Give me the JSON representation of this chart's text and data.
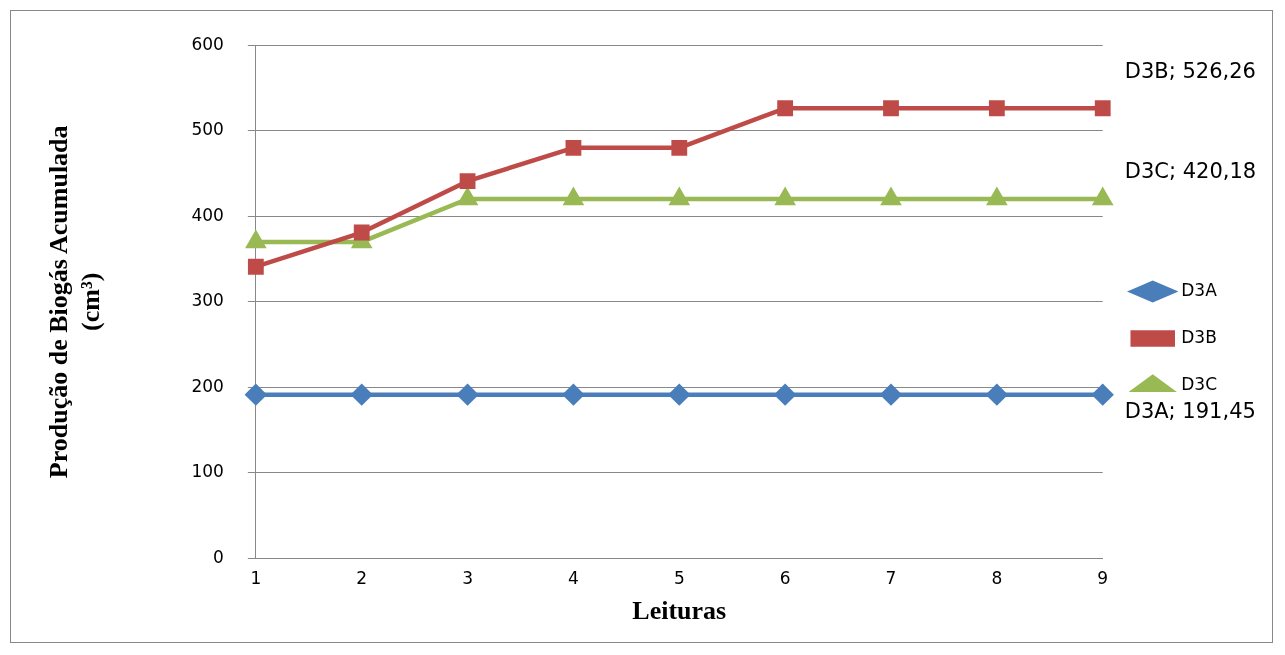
{
  "chart_data": {
    "type": "line",
    "xlabel": "Leituras",
    "ylabel": "Produção de Biogás Acumulada (cm³)",
    "categories": [
      "1",
      "2",
      "3",
      "4",
      "5",
      "6",
      "7",
      "8",
      "9"
    ],
    "series": [
      {
        "name": "D3A",
        "color": "#4a7ebb",
        "marker": "diamond",
        "values": [
          191.45,
          191.45,
          191.45,
          191.45,
          191.45,
          191.45,
          191.45,
          191.45,
          191.45
        ]
      },
      {
        "name": "D3B",
        "color": "#be4b48",
        "marker": "square",
        "values": [
          341,
          381,
          441,
          480,
          480,
          526.26,
          526.26,
          526.26,
          526.26
        ]
      },
      {
        "name": "D3C",
        "color": "#98b954",
        "marker": "triangle",
        "values": [
          370,
          370,
          420.18,
          420.18,
          420.18,
          420.18,
          420.18,
          420.18,
          420.18
        ]
      }
    ],
    "ylim": [
      0,
      600
    ],
    "yticks": [
      0,
      100,
      200,
      300,
      400,
      500,
      600
    ],
    "grid": "y",
    "legend": "right",
    "annotations": [
      {
        "text": "D3B; 526,26",
        "x": "9",
        "y": 526.26
      },
      {
        "text": "D3C; 420,18",
        "x": "9",
        "y": 420.18
      },
      {
        "text": "D3A; 191,45",
        "x": "9",
        "y": 191.45
      }
    ]
  }
}
